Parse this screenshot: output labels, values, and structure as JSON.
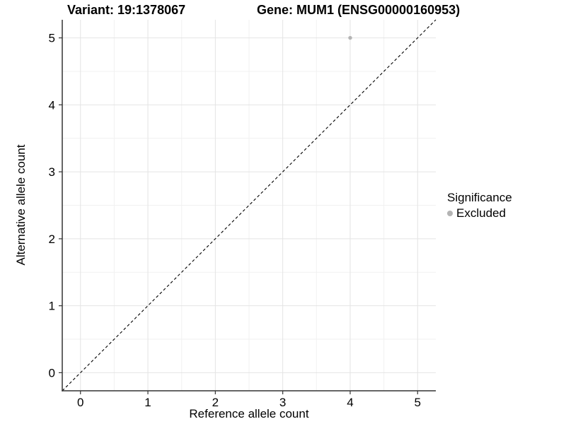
{
  "header": {
    "variant_title": "Variant: 19:1378067",
    "gene_title": "Gene: MUM1 (ENSG00000160953)"
  },
  "chart_data": {
    "type": "scatter",
    "title_left": "Variant: 19:1378067",
    "title_right": "Gene: MUM1 (ENSG00000160953)",
    "xlabel": "Reference allele count",
    "ylabel": "Alternative allele count",
    "xlim": [
      -0.27,
      5.27
    ],
    "ylim": [
      -0.27,
      5.27
    ],
    "xticks": [
      0,
      1,
      2,
      3,
      4,
      5
    ],
    "yticks": [
      0,
      1,
      2,
      3,
      4,
      5
    ],
    "minor_xticks": [
      0.5,
      1.5,
      2.5,
      3.5,
      4.5
    ],
    "minor_yticks": [
      0.5,
      1.5,
      2.5,
      3.5,
      4.5
    ],
    "grid": "major+minor",
    "legend_position": "right",
    "series": [
      {
        "name": "Excluded",
        "color": "#b4b4b4",
        "points": [
          {
            "x": 4,
            "y": 5
          }
        ]
      }
    ],
    "reference_line": {
      "kind": "identity y = x",
      "style": "dashed",
      "color": "#000000"
    }
  },
  "legend": {
    "title": "Significance",
    "items": [
      {
        "label": "Excluded",
        "color": "#b4b4b4",
        "marker": "dot"
      }
    ]
  },
  "palette": {
    "grid_major": "#e4e4e4",
    "grid_minor": "#f1f1f1",
    "axis_line": "#333333",
    "tick_text": "#000000",
    "background": "#ffffff"
  }
}
